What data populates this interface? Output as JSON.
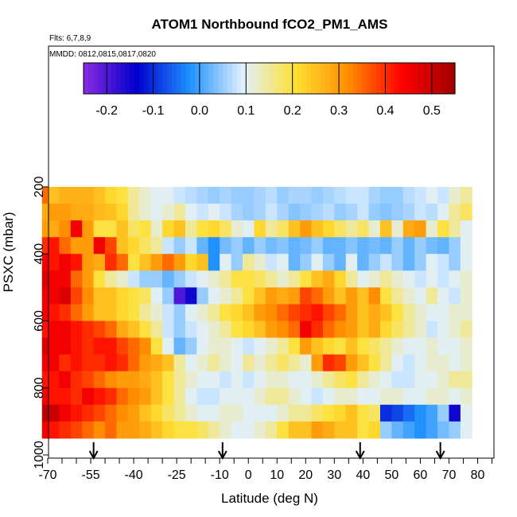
{
  "chart_data": {
    "type": "heatmap",
    "title": "ATOM1 Northbound fCO2_PM1_AMS",
    "subtitle_flights": "Flts: 6,7,8,9",
    "subtitle_dates": "MMDD: 0812,0815,0817,0820",
    "xlabel": "Latitude (deg N)",
    "ylabel": "PSXC (mbar)",
    "xlim": [
      -70,
      85
    ],
    "ylim": [
      1000,
      100
    ],
    "x_tick_labels": [
      "-70",
      "-55",
      "-40",
      "-25",
      "-10",
      "0",
      "10",
      "20",
      "30",
      "40",
      "50",
      "60",
      "70",
      "80"
    ],
    "y_tick_labels": [
      "200",
      "400",
      "600",
      "800",
      "1000"
    ],
    "colorbar": {
      "range": [
        -0.25,
        0.55
      ],
      "tick_labels": [
        "-0.2",
        "-0.1",
        "0.0",
        "0.1",
        "0.2",
        "0.3",
        "0.4",
        "0.5"
      ],
      "colors": [
        "#8a2be2",
        "#0000cd",
        "#1e90ff",
        "#e0f0ff",
        "#ffe033",
        "#ff8c00",
        "#ff0000",
        "#a00000"
      ]
    },
    "arrows_latitude": [
      -54,
      -9,
      39,
      67
    ],
    "lat_bins": [
      -72,
      -70,
      -66,
      -62,
      -58,
      -54,
      -50,
      -46,
      -42,
      -38,
      -34,
      -30,
      -26,
      -22,
      -18,
      -14,
      -10,
      -6,
      -2,
      2,
      6,
      10,
      14,
      18,
      22,
      26,
      30,
      34,
      38,
      42,
      46,
      50,
      54,
      58,
      62,
      66,
      70,
      74,
      78
    ],
    "pressure_levels": [
      225,
      275,
      325,
      375,
      425,
      475,
      525,
      575,
      625,
      675,
      725,
      775,
      825,
      875,
      925
    ],
    "values": [
      [
        0.35,
        0.25,
        0.27,
        0.27,
        0.27,
        0.25,
        0.22,
        0.2,
        0.15,
        0.12,
        0.1,
        0.1,
        0.08,
        0.07,
        0.06,
        0.05,
        0.06,
        0.05,
        0.05,
        0.06,
        0.07,
        0.05,
        0.06,
        0.06,
        0.05,
        0.06,
        0.07,
        0.08,
        0.08,
        0.06,
        0.05,
        0.05,
        0.07,
        0.08,
        0.1,
        0.08,
        0.12,
        0.15,
        0.2
      ],
      [
        0.28,
        0.3,
        0.3,
        0.28,
        0.28,
        0.26,
        0.25,
        0.22,
        0.15,
        0.12,
        0.1,
        0.12,
        0.15,
        0.1,
        0.08,
        0.1,
        0.08,
        0.06,
        0.05,
        0.06,
        0.08,
        0.06,
        0.04,
        0.05,
        0.06,
        0.07,
        0.05,
        0.06,
        0.08,
        0.05,
        0.04,
        0.05,
        0.06,
        0.08,
        0.07,
        0.1,
        0.15,
        0.18,
        0.22
      ],
      [
        0.3,
        0.28,
        0.32,
        0.45,
        0.3,
        0.2,
        0.2,
        0.25,
        0.18,
        0.2,
        0.12,
        0.22,
        0.25,
        0.15,
        0.2,
        0.22,
        0.18,
        0.12,
        0.1,
        0.22,
        0.15,
        0.18,
        0.25,
        0.3,
        0.25,
        0.22,
        0.18,
        0.15,
        0.18,
        0.12,
        0.25,
        0.12,
        0.28,
        0.3,
        0.12,
        0.2,
        0.15,
        0.1,
        0.12
      ],
      [
        0.4,
        0.42,
        0.35,
        0.3,
        0.3,
        0.45,
        0.38,
        0.25,
        0.22,
        0.18,
        0.15,
        0.08,
        0.05,
        0.08,
        0.02,
        -0.02,
        0.03,
        0.05,
        0.02,
        0.05,
        0.03,
        0.04,
        0.02,
        0.03,
        0.05,
        0.02,
        0.02,
        0.04,
        0.02,
        0.03,
        0.02,
        0.05,
        0.02,
        0.05,
        0.03,
        0.02,
        0.05,
        0.1,
        0.12
      ],
      [
        0.45,
        0.42,
        0.45,
        0.42,
        0.3,
        0.28,
        0.4,
        0.35,
        0.2,
        0.25,
        0.3,
        0.35,
        0.3,
        0.22,
        0.25,
        -0.02,
        0.1,
        0.05,
        0.15,
        0.12,
        0.08,
        0.1,
        0.02,
        0.05,
        0.1,
        0.05,
        0.02,
        0.1,
        0.02,
        0.05,
        0.08,
        0.05,
        0.02,
        0.05,
        0.1,
        0.08,
        0.05,
        0.1,
        0.12
      ],
      [
        0.48,
        0.45,
        0.45,
        0.35,
        0.3,
        0.2,
        0.15,
        0.12,
        0.08,
        0.05,
        0.05,
        0.02,
        0.05,
        0.08,
        0.1,
        0.12,
        0.15,
        0.2,
        0.2,
        0.18,
        0.15,
        0.12,
        0.15,
        0.2,
        0.25,
        0.28,
        0.22,
        0.15,
        0.1,
        0.12,
        0.15,
        0.12,
        0.1,
        0.08,
        0.1,
        0.08,
        0.1,
        0.12,
        0.15
      ],
      [
        0.45,
        0.45,
        0.48,
        0.38,
        0.32,
        0.25,
        0.25,
        0.22,
        0.2,
        0.18,
        0.1,
        0.05,
        -0.2,
        -0.15,
        0.05,
        0.1,
        0.12,
        0.15,
        0.2,
        0.25,
        0.3,
        0.28,
        0.3,
        0.38,
        0.35,
        0.3,
        0.25,
        0.3,
        0.25,
        0.32,
        0.2,
        0.15,
        0.12,
        0.1,
        0.15,
        0.1,
        0.08,
        0.12,
        0.15
      ],
      [
        0.45,
        0.42,
        0.4,
        0.35,
        0.3,
        0.25,
        0.25,
        0.22,
        0.2,
        0.15,
        0.12,
        0.08,
        0.05,
        0.1,
        0.12,
        0.15,
        0.2,
        0.22,
        0.25,
        0.3,
        0.32,
        0.35,
        0.38,
        0.4,
        0.42,
        0.38,
        0.35,
        0.3,
        0.25,
        0.28,
        0.25,
        0.2,
        0.15,
        0.12,
        0.1,
        0.1,
        0.12,
        0.12,
        0.15
      ],
      [
        0.42,
        0.45,
        0.45,
        0.42,
        0.4,
        0.38,
        0.35,
        0.28,
        0.25,
        0.2,
        0.15,
        0.08,
        0.05,
        0.08,
        0.1,
        0.12,
        0.15,
        0.2,
        0.22,
        0.25,
        0.3,
        0.32,
        0.35,
        0.45,
        0.4,
        0.35,
        0.32,
        0.3,
        0.25,
        0.28,
        0.22,
        0.18,
        0.15,
        0.12,
        0.08,
        0.1,
        0.12,
        0.15,
        0.15
      ],
      [
        0.48,
        0.45,
        0.45,
        0.42,
        0.4,
        0.42,
        0.42,
        0.38,
        0.35,
        0.32,
        0.2,
        0.1,
        0.02,
        0.05,
        0.1,
        0.12,
        0.12,
        0.1,
        0.08,
        0.1,
        0.12,
        0.15,
        0.2,
        0.3,
        0.25,
        0.22,
        0.2,
        0.25,
        0.2,
        0.18,
        0.15,
        0.12,
        0.1,
        0.1,
        0.12,
        0.1,
        0.1,
        0.12,
        0.15
      ],
      [
        0.45,
        0.45,
        0.4,
        0.42,
        0.4,
        0.4,
        0.42,
        0.4,
        0.35,
        0.3,
        0.28,
        0.25,
        0.15,
        0.1,
        0.12,
        0.15,
        0.12,
        0.1,
        0.15,
        0.12,
        0.15,
        0.18,
        0.15,
        0.12,
        0.3,
        0.4,
        0.38,
        0.3,
        0.25,
        0.2,
        0.15,
        0.1,
        0.08,
        0.1,
        0.12,
        0.12,
        0.1,
        0.12,
        0.15
      ],
      [
        0.42,
        0.42,
        0.45,
        0.4,
        0.38,
        0.35,
        0.32,
        0.3,
        0.3,
        0.28,
        0.25,
        0.2,
        0.15,
        0.12,
        0.1,
        0.1,
        0.08,
        0.1,
        0.08,
        0.1,
        0.12,
        0.12,
        0.1,
        0.1,
        0.12,
        0.15,
        0.18,
        0.2,
        0.15,
        0.12,
        0.1,
        0.08,
        0.08,
        0.1,
        0.1,
        0.12,
        0.15,
        0.15,
        0.18
      ],
      [
        0.45,
        0.42,
        0.42,
        0.4,
        0.45,
        0.42,
        0.4,
        0.35,
        0.32,
        0.3,
        0.25,
        0.2,
        0.15,
        0.1,
        0.08,
        0.08,
        0.1,
        0.1,
        0.1,
        0.12,
        0.15,
        0.15,
        0.12,
        0.1,
        0.08,
        0.1,
        0.12,
        0.12,
        0.1,
        0.1,
        0.12,
        0.12,
        0.1,
        0.1,
        0.12,
        0.12,
        0.1,
        0.12,
        0.15
      ],
      [
        0.52,
        0.5,
        0.45,
        0.42,
        0.4,
        0.38,
        0.35,
        0.32,
        0.3,
        0.25,
        0.22,
        0.18,
        0.15,
        0.12,
        0.1,
        0.1,
        0.12,
        0.12,
        0.1,
        0.1,
        0.1,
        0.12,
        0.15,
        0.15,
        0.18,
        0.2,
        0.22,
        0.25,
        0.2,
        0.18,
        -0.1,
        -0.08,
        -0.05,
        -0.02,
        0.0,
        0.05,
        -0.15,
        0.1,
        0.12
      ],
      [
        0.45,
        0.42,
        0.4,
        0.38,
        0.35,
        0.32,
        0.35,
        0.3,
        0.3,
        0.28,
        0.25,
        0.22,
        0.2,
        0.2,
        0.18,
        0.15,
        0.12,
        0.1,
        0.1,
        0.12,
        0.15,
        0.2,
        0.25,
        0.25,
        0.3,
        0.28,
        0.25,
        0.25,
        0.2,
        0.22,
        0.05,
        0.02,
        0.0,
        -0.02,
        0.0,
        0.03,
        0.05,
        0.1,
        0.12
      ]
    ],
    "grid": false,
    "legend_position": "top"
  }
}
